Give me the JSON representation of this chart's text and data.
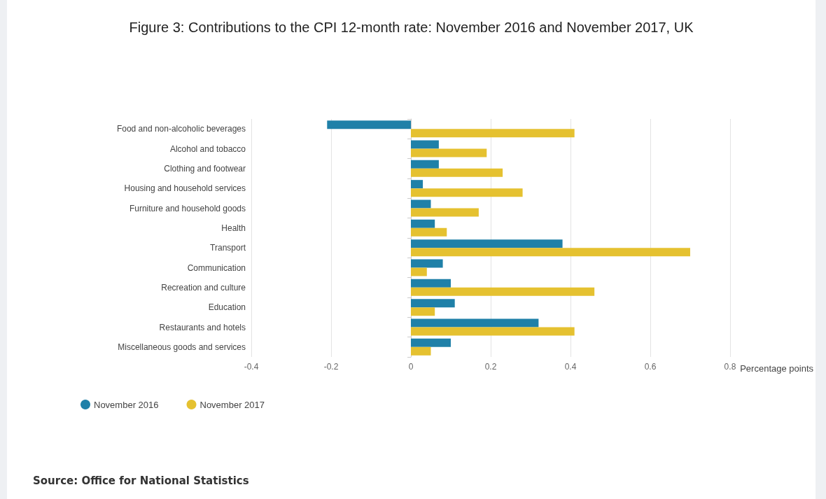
{
  "chart_data": {
    "type": "bar",
    "orientation": "horizontal",
    "title": "Figure 3: Contributions to the CPI 12-month rate: November 2016 and November 2017, UK",
    "categories": [
      "Food and non-alcoholic beverages",
      "Alcohol and tobacco",
      "Clothing and footwear",
      "Housing and household services",
      "Furniture and household goods",
      "Health",
      "Transport",
      "Communication",
      "Recreation and culture",
      "Education",
      "Restaurants and hotels",
      "Miscellaneous goods and services"
    ],
    "series": [
      {
        "name": "November 2016",
        "color": "#1f80a8",
        "values": [
          -0.21,
          0.07,
          0.07,
          0.03,
          0.05,
          0.06,
          0.38,
          0.08,
          0.1,
          0.11,
          0.32,
          0.1
        ]
      },
      {
        "name": "November 2017",
        "color": "#e5c130",
        "values": [
          0.41,
          0.19,
          0.23,
          0.28,
          0.17,
          0.09,
          0.7,
          0.04,
          0.46,
          0.06,
          0.41,
          0.05
        ]
      }
    ],
    "xlabel": "Percentage points",
    "xlim": [
      -0.4,
      0.8
    ],
    "xticks": [
      -0.4,
      -0.2,
      0,
      0.2,
      0.4,
      0.6,
      0.8
    ],
    "grid": "x",
    "legend": "bottom left",
    "annotations": [
      "Source: Office for National Statistics"
    ]
  }
}
